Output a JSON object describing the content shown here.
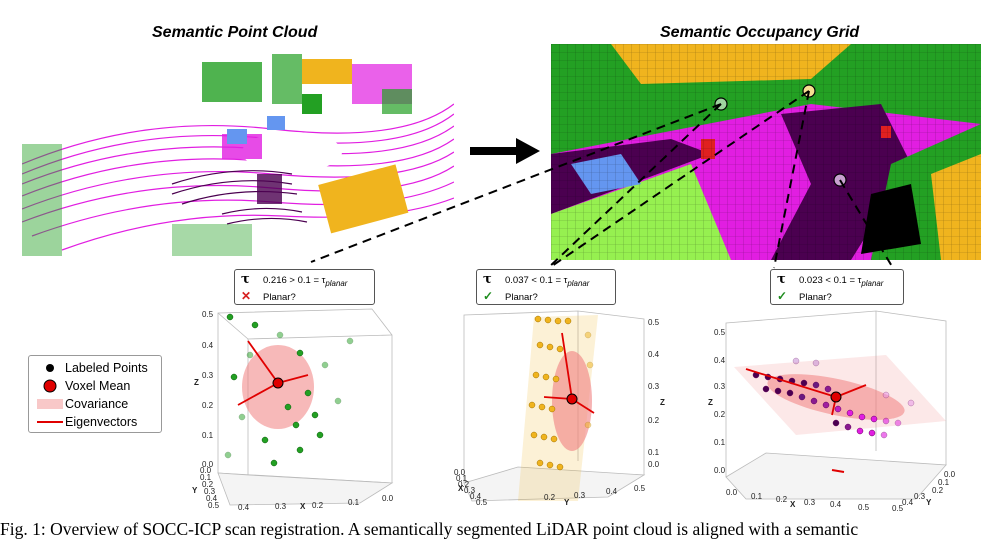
{
  "titles": {
    "point_cloud": "Semantic Point Cloud",
    "occupancy_grid": "Semantic Occupancy Grid"
  },
  "panels": [
    {
      "tau_symbol": "τ",
      "test": "0.216 > 0.1 = τ",
      "sub": "planar",
      "mark": "✕",
      "question": "Planar?",
      "result": "fail",
      "z_ticks": [
        "0.5",
        "0.4",
        "0.3",
        "0.2",
        "0.1",
        "0.0"
      ],
      "x_ticks": [
        "0.4",
        "0.3",
        "0.2",
        "0.1",
        "0.0"
      ],
      "y_ticks": [
        "0.0",
        "0.1",
        "0.2",
        "0.3",
        "0.4",
        "0.5"
      ],
      "z_label": "Z",
      "x_label": "X",
      "y_label": "Y"
    },
    {
      "tau_symbol": "τ",
      "test": "0.037 < 0.1 = τ",
      "sub": "planar",
      "mark": "✓",
      "question": "Planar?",
      "result": "pass",
      "z_ticks": [
        "0.5",
        "0.4",
        "0.3",
        "0.2",
        "0.1",
        "0.0"
      ],
      "x_ticks": [
        "0.2",
        "0.3",
        "0.4",
        "0.5"
      ],
      "y_ticks": [
        "0.0",
        "0.1",
        "0.2",
        "0.3",
        "0.4",
        "0.5"
      ],
      "z_label": "Z",
      "x_label": "X",
      "y_label": "Y"
    },
    {
      "tau_symbol": "τ",
      "test": "0.023 < 0.1 = τ",
      "sub": "planar",
      "mark": "✓",
      "question": "Planar?",
      "result": "pass",
      "z_ticks": [
        "0.5",
        "0.4",
        "0.3",
        "0.2",
        "0.1",
        "0.0"
      ],
      "x_ticks": [
        "0.0",
        "0.1",
        "0.2",
        "0.3",
        "0.4",
        "0.5"
      ],
      "y_ticks": [
        "0.0",
        "0.1",
        "0.2",
        "0.3",
        "0.4",
        "0.5"
      ],
      "z_label": "Z",
      "x_label": "X",
      "y_label": "Y"
    }
  ],
  "legend": {
    "items": [
      "Labeled Points",
      "Voxel Mean",
      "Covariance",
      "Eigenvectors"
    ]
  },
  "colors": {
    "road": "#e11ee1",
    "sidewalk": "#4b0050",
    "vegetation": "#23a023",
    "terrain": "#96f050",
    "building": "#f0b41e",
    "car": "#6496f0",
    "voxel_mean": "#e00000",
    "covariance": "#f08080"
  },
  "caption": "Fig. 1: Overview of SOCC-ICP scan registration. A semantically segmented LiDAR point cloud is aligned with a semantic"
}
